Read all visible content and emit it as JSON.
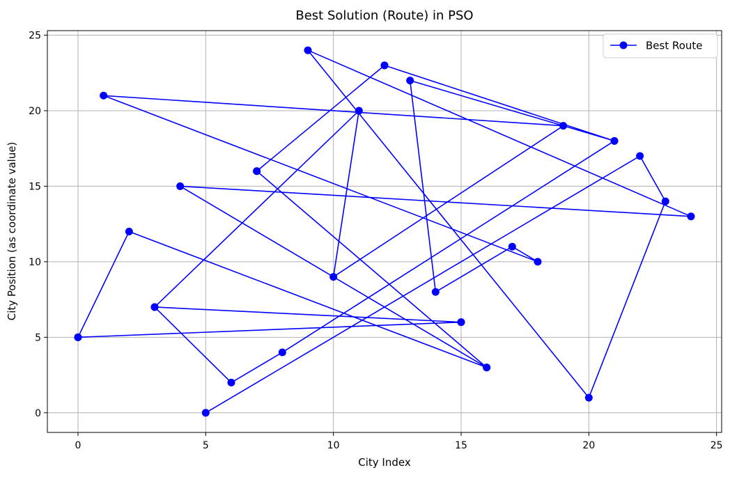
{
  "chart_data": {
    "type": "line",
    "title": "Best Solution (Route) in PSO",
    "xlabel": "City Index",
    "ylabel": "City Position (as coordinate value)",
    "xlim": [
      -1.2,
      25.2
    ],
    "ylim": [
      -1.3,
      25.3
    ],
    "xticks": [
      0,
      5,
      10,
      15,
      20,
      25
    ],
    "yticks": [
      0,
      5,
      10,
      15,
      20,
      25
    ],
    "grid": true,
    "legend_position": "top-right",
    "series": [
      {
        "name": "Best Route",
        "color": "#0000ff",
        "marker": "circle",
        "points": [
          [
            0,
            5
          ],
          [
            15,
            6
          ],
          [
            3,
            7
          ],
          [
            6,
            2
          ],
          [
            8,
            4
          ],
          [
            21,
            18
          ],
          [
            12,
            23
          ],
          [
            7,
            16
          ],
          [
            16,
            3
          ],
          [
            2,
            12
          ],
          [
            0,
            5
          ],
          [
            15,
            6
          ],
          [
            3,
            7
          ],
          [
            11,
            20
          ],
          [
            10,
            9
          ],
          [
            19,
            19
          ],
          [
            1,
            21
          ],
          [
            18,
            10
          ],
          [
            17,
            11
          ],
          [
            14,
            8
          ],
          [
            13,
            22
          ],
          [
            21,
            18
          ],
          [
            12,
            23
          ],
          [
            7,
            16
          ],
          [
            16,
            3
          ],
          [
            4,
            15
          ],
          [
            24,
            13
          ],
          [
            9,
            24
          ],
          [
            20,
            1
          ],
          [
            23,
            14
          ],
          [
            22,
            17
          ],
          [
            5,
            0
          ]
        ]
      }
    ]
  }
}
